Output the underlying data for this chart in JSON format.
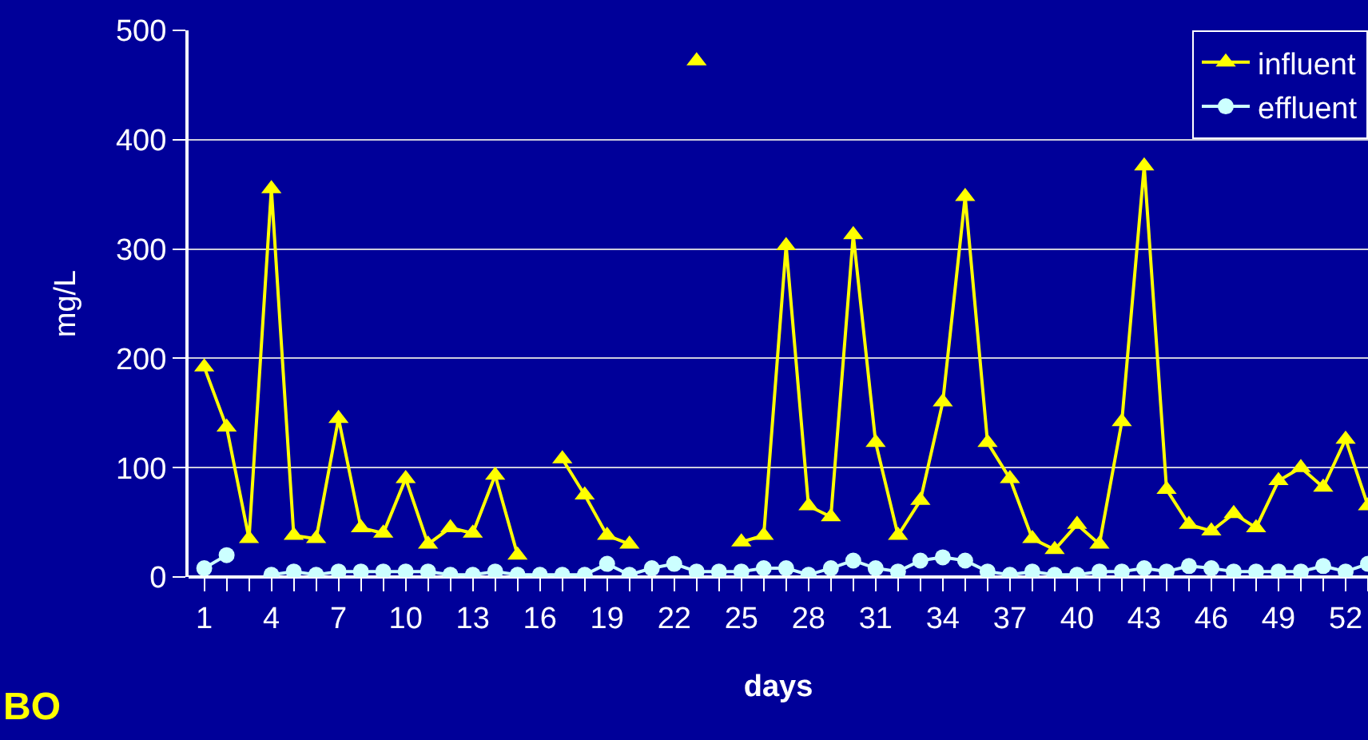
{
  "chart_data": {
    "type": "line",
    "categories": [
      "1",
      null,
      null,
      "4",
      null,
      null,
      "7",
      null,
      null,
      "10",
      null,
      null,
      "13",
      null,
      null,
      "16",
      null,
      null,
      "19",
      null,
      null,
      "22",
      null,
      null,
      "25",
      null,
      null,
      "28",
      null,
      null,
      "31",
      null,
      null,
      "34",
      null,
      null,
      "37",
      null,
      null,
      "40",
      null,
      null,
      "43",
      null,
      null,
      "46",
      null,
      null,
      "49",
      null,
      null,
      "52",
      null
    ],
    "series": [
      {
        "name": "influent",
        "color": "#ffff00",
        "marker": "triangle",
        "values": [
          192,
          137,
          35,
          355,
          38,
          35,
          145,
          45,
          40,
          90,
          30,
          45,
          40,
          93,
          20,
          null,
          108,
          75,
          38,
          30,
          null,
          null,
          472,
          null,
          32,
          38,
          303,
          65,
          55,
          313,
          123,
          38,
          70,
          160,
          348,
          123,
          90,
          35,
          25,
          48,
          30,
          142,
          376,
          80,
          48,
          42,
          58,
          45,
          88,
          100,
          82,
          126,
          65
        ]
      },
      {
        "name": "effluent",
        "color": "#ccffff",
        "marker": "circle",
        "values": [
          8,
          20,
          null,
          2,
          5,
          2,
          5,
          5,
          5,
          5,
          5,
          2,
          2,
          5,
          2,
          2,
          2,
          2,
          12,
          2,
          8,
          12,
          5,
          5,
          5,
          8,
          8,
          2,
          8,
          15,
          8,
          5,
          15,
          18,
          15,
          5,
          2,
          5,
          2,
          2,
          5,
          5,
          8,
          5,
          10,
          8,
          5,
          5,
          5,
          5,
          10,
          5,
          12
        ]
      }
    ],
    "xlabel": "days",
    "ylabel": "mg/L",
    "ylim": [
      0,
      500
    ],
    "yticks": [
      0,
      100,
      200,
      300,
      400,
      500
    ],
    "grid": "y",
    "legend": "top right",
    "line_style": "solid",
    "annotations": [
      "BO"
    ]
  }
}
